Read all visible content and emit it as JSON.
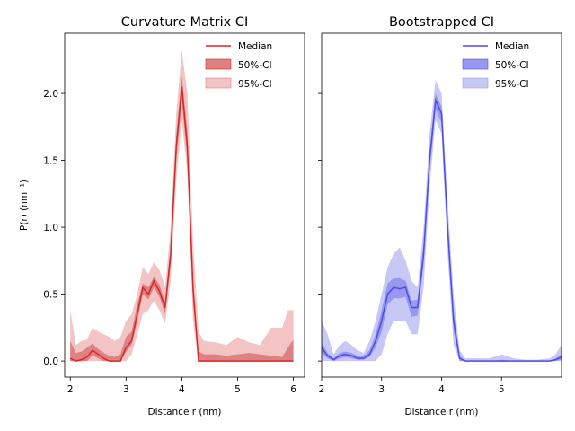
{
  "chart_data": [
    {
      "type": "line",
      "title": "Curvature Matrix CI",
      "xlabel": "Distance r (nm)",
      "ylabel": "P(r) (nm⁻¹)",
      "xlim": [
        1.9,
        6.2
      ],
      "ylim": [
        -0.12,
        2.45
      ],
      "xticks": [
        2,
        3,
        4,
        5,
        6
      ],
      "yticks": [
        0.0,
        0.5,
        1.0,
        1.5,
        2.0
      ],
      "ytick_labels": [
        "0.0",
        "0.5",
        "1.0",
        "1.5",
        "2.0"
      ],
      "legend_position": "top-right",
      "colors": {
        "median": "#d62728",
        "ci50": "#e08080",
        "ci95": "#f3c4c4"
      },
      "legend": [
        "Median",
        "50%-CI",
        "95%-CI"
      ],
      "x": [
        2.0,
        2.1,
        2.2,
        2.3,
        2.4,
        2.5,
        2.6,
        2.7,
        2.8,
        2.9,
        3.0,
        3.1,
        3.2,
        3.3,
        3.4,
        3.5,
        3.6,
        3.7,
        3.8,
        3.9,
        4.0,
        4.1,
        4.2,
        4.3,
        4.4,
        4.6,
        4.8,
        5.0,
        5.2,
        5.4,
        5.6,
        5.8,
        5.9,
        6.0
      ],
      "series": [
        {
          "name": "Median",
          "values": [
            0.02,
            0.0,
            0.01,
            0.03,
            0.08,
            0.05,
            0.02,
            0.0,
            0.0,
            0.0,
            0.1,
            0.15,
            0.35,
            0.55,
            0.5,
            0.6,
            0.52,
            0.4,
            0.8,
            1.6,
            2.05,
            1.6,
            0.55,
            0.0,
            0.0,
            0.0,
            0.0,
            0.0,
            0.0,
            0.0,
            0.0,
            0.0,
            0.0,
            0.0
          ]
        },
        {
          "name": "50%-CI lower",
          "values": [
            0.0,
            0.0,
            0.0,
            0.0,
            0.04,
            0.02,
            0.0,
            0.0,
            0.0,
            0.0,
            0.07,
            0.12,
            0.3,
            0.5,
            0.46,
            0.55,
            0.48,
            0.35,
            0.72,
            1.5,
            1.95,
            1.5,
            0.45,
            0.0,
            0.0,
            0.0,
            0.0,
            0.0,
            0.0,
            0.0,
            0.0,
            0.0,
            0.0,
            0.0
          ]
        },
        {
          "name": "50%-CI upper",
          "values": [
            0.15,
            0.06,
            0.07,
            0.1,
            0.13,
            0.09,
            0.06,
            0.04,
            0.03,
            0.05,
            0.18,
            0.22,
            0.42,
            0.58,
            0.55,
            0.63,
            0.57,
            0.44,
            0.86,
            1.68,
            2.13,
            1.7,
            0.62,
            0.07,
            0.05,
            0.05,
            0.04,
            0.05,
            0.06,
            0.05,
            0.04,
            0.03,
            0.1,
            0.16
          ]
        },
        {
          "name": "95%-CI lower",
          "values": [
            0.0,
            0.0,
            0.0,
            0.0,
            0.0,
            0.0,
            0.0,
            0.0,
            0.0,
            0.0,
            0.0,
            0.05,
            0.2,
            0.35,
            0.38,
            0.45,
            0.38,
            0.28,
            0.6,
            1.35,
            1.8,
            1.4,
            0.3,
            0.0,
            0.0,
            0.0,
            0.0,
            0.0,
            0.0,
            0.0,
            0.0,
            0.0,
            0.0,
            0.0
          ]
        },
        {
          "name": "95%-CI upper",
          "values": [
            0.38,
            0.12,
            0.15,
            0.16,
            0.25,
            0.22,
            0.2,
            0.18,
            0.15,
            0.18,
            0.3,
            0.35,
            0.5,
            0.7,
            0.65,
            0.74,
            0.68,
            0.55,
            1.0,
            1.85,
            2.32,
            2.0,
            0.9,
            0.22,
            0.15,
            0.14,
            0.12,
            0.18,
            0.14,
            0.12,
            0.25,
            0.25,
            0.38,
            0.38
          ]
        }
      ]
    },
    {
      "type": "line",
      "title": "Bootstrapped CI",
      "xlabel": "Distance r (nm)",
      "ylabel": "",
      "xlim": [
        2.0,
        6.0
      ],
      "ylim": [
        -0.12,
        2.45
      ],
      "xticks": [
        2,
        3,
        4,
        5
      ],
      "yticks": [
        0.0,
        0.5,
        1.0,
        1.5,
        2.0
      ],
      "legend_position": "top-right",
      "colors": {
        "median": "#4c4ce6",
        "ci50": "#9898f0",
        "ci95": "#c8c8f6"
      },
      "legend": [
        "Median",
        "50%-CI",
        "95%-CI"
      ],
      "x": [
        2.0,
        2.1,
        2.2,
        2.3,
        2.4,
        2.5,
        2.6,
        2.7,
        2.8,
        2.9,
        3.0,
        3.1,
        3.2,
        3.3,
        3.4,
        3.5,
        3.6,
        3.7,
        3.8,
        3.9,
        4.0,
        4.1,
        4.2,
        4.3,
        4.4,
        4.6,
        4.8,
        5.0,
        5.2,
        5.4,
        5.6,
        5.8,
        5.9,
        6.0
      ],
      "series": [
        {
          "name": "Median",
          "values": [
            0.1,
            0.04,
            0.01,
            0.04,
            0.05,
            0.04,
            0.02,
            0.02,
            0.05,
            0.15,
            0.3,
            0.5,
            0.55,
            0.54,
            0.55,
            0.4,
            0.4,
            0.8,
            1.5,
            1.95,
            1.85,
            1.0,
            0.3,
            0.02,
            0.0,
            0.0,
            0.0,
            0.0,
            0.0,
            0.0,
            0.0,
            0.0,
            0.01,
            0.03
          ]
        },
        {
          "name": "50%-CI lower",
          "values": [
            0.06,
            0.02,
            0.0,
            0.02,
            0.03,
            0.02,
            0.01,
            0.01,
            0.03,
            0.1,
            0.22,
            0.42,
            0.47,
            0.47,
            0.48,
            0.33,
            0.34,
            0.72,
            1.42,
            1.88,
            1.78,
            0.92,
            0.22,
            0.0,
            0.0,
            0.0,
            0.0,
            0.0,
            0.0,
            0.0,
            0.0,
            0.0,
            0.0,
            0.01
          ]
        },
        {
          "name": "50%-CI upper",
          "values": [
            0.14,
            0.06,
            0.02,
            0.06,
            0.07,
            0.06,
            0.04,
            0.04,
            0.08,
            0.2,
            0.38,
            0.58,
            0.62,
            0.62,
            0.6,
            0.45,
            0.46,
            0.88,
            1.58,
            2.0,
            1.9,
            1.08,
            0.38,
            0.04,
            0.0,
            0.0,
            0.0,
            0.01,
            0.0,
            0.0,
            0.0,
            0.0,
            0.02,
            0.05
          ]
        },
        {
          "name": "95%-CI lower",
          "values": [
            0.0,
            0.0,
            0.0,
            0.0,
            0.0,
            0.0,
            0.0,
            0.0,
            0.0,
            0.0,
            0.05,
            0.2,
            0.3,
            0.3,
            0.3,
            0.2,
            0.2,
            0.55,
            1.3,
            1.8,
            1.7,
            0.8,
            0.12,
            0.0,
            0.0,
            0.0,
            0.0,
            0.0,
            0.0,
            0.0,
            0.0,
            0.0,
            0.0,
            0.0
          ]
        },
        {
          "name": "95%-CI upper",
          "values": [
            0.3,
            0.2,
            0.05,
            0.12,
            0.15,
            0.12,
            0.08,
            0.06,
            0.15,
            0.3,
            0.5,
            0.7,
            0.8,
            0.85,
            0.75,
            0.6,
            0.55,
            1.0,
            1.7,
            2.1,
            2.0,
            1.2,
            0.5,
            0.08,
            0.02,
            0.02,
            0.02,
            0.05,
            0.02,
            0.01,
            0.01,
            0.02,
            0.05,
            0.12
          ]
        }
      ]
    }
  ]
}
